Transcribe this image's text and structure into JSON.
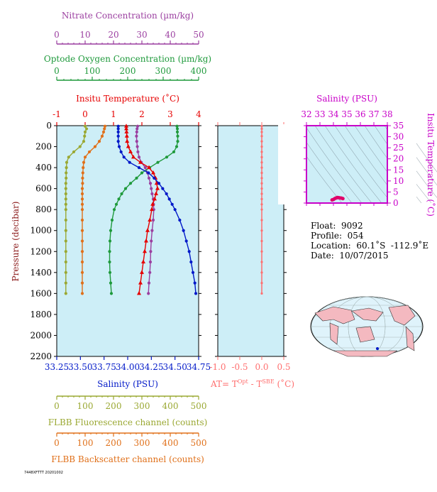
{
  "colors": {
    "nitrate": "#9b3fa0",
    "oxygen": "#1f9a3c",
    "temperature": "#e60000",
    "salinity": "#0018c8",
    "fluorescence": "#9aa832",
    "backscatter": "#e0701a",
    "at": "#ff6f6f",
    "ts_axis": "#c800c8",
    "plot_bg": "#cdeef7"
  },
  "axes_text": {
    "nitrate": {
      "label": "Nitrate Concentration (µm/kg)",
      "ticks": [
        "0",
        "10",
        "20",
        "30",
        "40",
        "50"
      ]
    },
    "oxygen": {
      "label": "Optode Oxygen Concentration (µm/kg)",
      "ticks": [
        "0",
        "100",
        "200",
        "300",
        "400"
      ]
    },
    "temperature": {
      "label": "Insitu Temperature (˚C)",
      "ticks": [
        "-1",
        "0",
        "1",
        "2",
        "3",
        "4"
      ]
    },
    "salinity": {
      "label": "Salinity (PSU)",
      "ticks": [
        "33.25",
        "33.50",
        "33.75",
        "34.00",
        "34.25",
        "34.50",
        "34.75"
      ]
    },
    "fluorescence": {
      "label": "FLBB Fluorescence channel (counts)",
      "ticks": [
        "0",
        "100",
        "200",
        "300",
        "400",
        "500"
      ]
    },
    "backscatter": {
      "label": "FLBB Backscatter channel (counts)",
      "ticks": [
        "0",
        "100",
        "200",
        "300",
        "400",
        "500"
      ]
    },
    "pressure": {
      "label": "Pressure (decibar)",
      "ticks": [
        "0",
        "200",
        "400",
        "600",
        "800",
        "1000",
        "1200",
        "1400",
        "1600",
        "1800",
        "2000",
        "2200"
      ]
    },
    "at": {
      "label_main": "AT= T",
      "sup1": "Opt",
      "mid": " - T",
      "sup2": "SBE",
      "tail": " (˚C)",
      "ticks": [
        "-1.0",
        "-0.5",
        "0.0",
        "0.5"
      ]
    },
    "ts_salinity": {
      "label": "Salinity (PSU)",
      "ticks": [
        "32",
        "33",
        "34",
        "35",
        "36",
        "37",
        "38"
      ]
    },
    "ts_temperature": {
      "label": "Insitu Temperature (˚C)",
      "ticks": [
        "0",
        "5",
        "10",
        "15",
        "20",
        "25",
        "30",
        "35"
      ]
    }
  },
  "float_info": {
    "float": "Float:  9092",
    "profile": "Profile:  054",
    "location": "Location:  60.1˚S  -112.9˚E",
    "date": "Date:  10/07/2015"
  },
  "footer_code": "7448XFTTT 20201002",
  "chart_data": {
    "type": "scatter",
    "y_axis": {
      "name": "pressure",
      "range": [
        0,
        2200
      ],
      "inverted": true
    },
    "pressure": [
      5,
      30,
      60,
      100,
      150,
      200,
      250,
      300,
      350,
      400,
      450,
      500,
      550,
      600,
      650,
      700,
      750,
      800,
      900,
      1000,
      1100,
      1200,
      1300,
      1400,
      1500,
      1600
    ],
    "x_ranges": {
      "nitrate": [
        0,
        50
      ],
      "oxygen": [
        0,
        400
      ],
      "temperature": [
        -1,
        4
      ],
      "salinity": [
        33.25,
        34.75
      ],
      "fluorescence": [
        0,
        500
      ],
      "backscatter": [
        0,
        500
      ],
      "at": [
        -1.0,
        0.5
      ]
    },
    "series": [
      {
        "name": "Nitrate",
        "axis": "nitrate",
        "marker": "circle",
        "values": [
          28.5,
          28.3,
          28.2,
          28.1,
          28.2,
          28.4,
          28.6,
          29.0,
          29.8,
          31.2,
          32.0,
          32.5,
          33.0,
          33.3,
          33.6,
          34.0,
          34.1,
          34.2,
          34.0,
          33.6,
          33.3,
          33.1,
          33.0,
          32.8,
          32.5,
          32.3
        ]
      },
      {
        "name": "Oxygen",
        "axis": "oxygen",
        "marker": "circle",
        "values": [
          339,
          340,
          340,
          341,
          341,
          338,
          330,
          310,
          285,
          262,
          240,
          225,
          208,
          194,
          183,
          175,
          168,
          162,
          156,
          152,
          150,
          149,
          149,
          150,
          152,
          154
        ]
      },
      {
        "name": "Temperature",
        "axis": "temperature",
        "marker": "triangle",
        "values": [
          1.45,
          1.45,
          1.46,
          1.47,
          1.48,
          1.52,
          1.6,
          1.7,
          1.95,
          2.25,
          2.4,
          2.48,
          2.52,
          2.55,
          2.5,
          2.45,
          2.38,
          2.35,
          2.28,
          2.2,
          2.15,
          2.1,
          2.05,
          2.0,
          1.95,
          1.9
        ]
      },
      {
        "name": "Salinity",
        "axis": "salinity",
        "marker": "circle",
        "values": [
          33.9,
          33.9,
          33.9,
          33.9,
          33.9,
          33.91,
          33.93,
          33.96,
          34.02,
          34.12,
          34.22,
          34.28,
          34.33,
          34.37,
          34.41,
          34.44,
          34.47,
          34.5,
          34.55,
          34.59,
          34.62,
          34.65,
          34.67,
          34.69,
          34.71,
          34.72
        ]
      },
      {
        "name": "Fluorescence",
        "axis": "fluorescence",
        "marker": "circle",
        "values": [
          100,
          105,
          100,
          98,
          95,
          82,
          60,
          42,
          35,
          34,
          33,
          33,
          32,
          32,
          32,
          32,
          32,
          32,
          32,
          32,
          32,
          32,
          32,
          32,
          32,
          32
        ]
      },
      {
        "name": "Backscatter",
        "axis": "backscatter",
        "marker": "circle",
        "values": [
          170,
          168,
          165,
          160,
          150,
          135,
          115,
          100,
          95,
          93,
          92,
          91,
          91,
          90,
          90,
          90,
          90,
          90,
          90,
          90,
          90,
          90,
          90,
          90,
          90,
          90
        ]
      },
      {
        "name": "AT",
        "axis": "at",
        "marker": "circle",
        "values": [
          0.0,
          0.0,
          0.0,
          0.0,
          0.0,
          0.0,
          0.0,
          0.0,
          0.0,
          0.0,
          0.0,
          0.0,
          0.0,
          0.0,
          0.0,
          0.0,
          0.0,
          0.0,
          0.0,
          0.0,
          0.0,
          0.0,
          0.0,
          0.0,
          0.0,
          0.0
        ]
      }
    ],
    "ts_diagram": {
      "type": "scatter",
      "x_range": [
        32,
        38
      ],
      "y_range": [
        0,
        35
      ],
      "points": [
        {
          "s": 33.9,
          "t": 1.4
        },
        {
          "s": 34.0,
          "t": 1.6
        },
        {
          "s": 34.1,
          "t": 2.0
        },
        {
          "s": 34.2,
          "t": 2.3
        },
        {
          "s": 34.3,
          "t": 2.5
        },
        {
          "s": 34.4,
          "t": 2.4
        },
        {
          "s": 34.5,
          "t": 2.3
        },
        {
          "s": 34.6,
          "t": 2.2
        },
        {
          "s": 34.7,
          "t": 2.0
        }
      ]
    }
  }
}
